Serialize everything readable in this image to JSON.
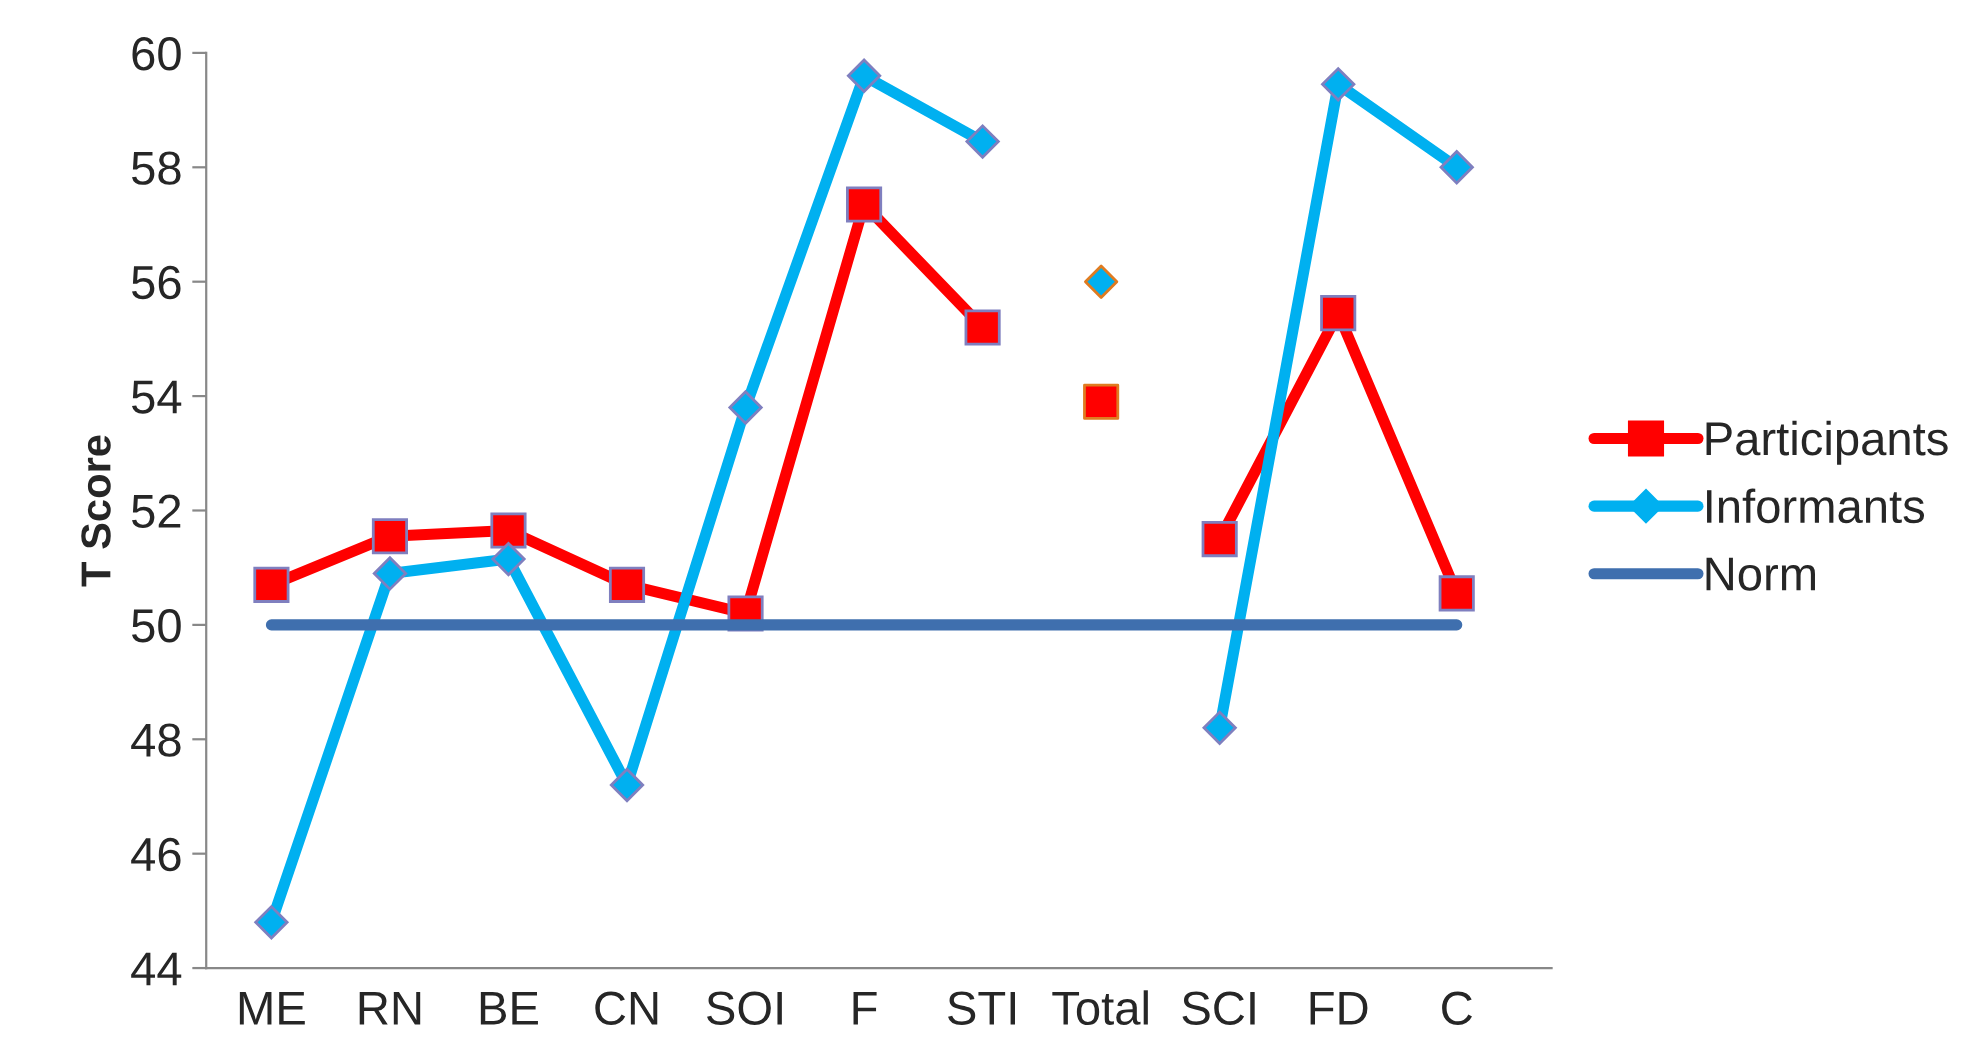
{
  "chart_data": {
    "type": "line",
    "ylabel": "T Score",
    "categories": [
      "ME",
      "RN",
      "BE",
      "CN",
      "SOI",
      "F",
      "STI",
      "Total",
      "SCI",
      "FD",
      "C"
    ],
    "series": [
      {
        "name": "Participants",
        "color": "#ff0000",
        "marker": "square",
        "values": [
          50.7,
          51.55,
          51.65,
          50.7,
          50.2,
          57.35,
          55.2,
          null,
          51.5,
          55.45,
          50.55
        ]
      },
      {
        "name": "Informants",
        "color": "#00b0f0",
        "marker": "diamond",
        "values": [
          44.8,
          50.9,
          51.15,
          47.2,
          53.8,
          59.6,
          58.45,
          null,
          48.2,
          59.45,
          58.0
        ]
      },
      {
        "name": "Norm",
        "color": "#3f6fae",
        "marker": "none",
        "values": [
          50,
          50,
          50,
          50,
          50,
          50,
          50,
          50,
          50,
          50,
          50
        ]
      },
      {
        "type": "scatter",
        "color": "#ff0000",
        "marker": "square",
        "x": [
          "Total"
        ],
        "values": [
          53.9
        ]
      },
      {
        "type": "scatter",
        "color": "#00b0f0",
        "marker": "diamond",
        "x": [
          "Total"
        ],
        "values": [
          56.0
        ]
      }
    ],
    "ylim": [
      44,
      60
    ],
    "yticks": [
      44,
      46,
      48,
      50,
      52,
      54,
      56,
      58,
      60
    ],
    "grid": false,
    "legend": "right"
  }
}
